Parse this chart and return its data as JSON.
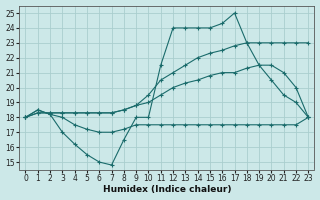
{
  "xlabel": "Humidex (Indice chaleur)",
  "ylabel": "",
  "bg_color": "#cce8e8",
  "grid_color": "#aacece",
  "line_color": "#1a6b6b",
  "xlim": [
    -0.5,
    23.5
  ],
  "ylim": [
    14.5,
    25.5
  ],
  "xticks": [
    0,
    1,
    2,
    3,
    4,
    5,
    6,
    7,
    8,
    9,
    10,
    11,
    12,
    13,
    14,
    15,
    16,
    17,
    18,
    19,
    20,
    21,
    22,
    23
  ],
  "yticks": [
    15,
    16,
    17,
    18,
    19,
    20,
    21,
    22,
    23,
    24,
    25
  ],
  "lines": [
    {
      "x": [
        0,
        1,
        2,
        3,
        4,
        5,
        6,
        7,
        8,
        9,
        10,
        11,
        12,
        13,
        14,
        15,
        16,
        17,
        18,
        19,
        20,
        21,
        22,
        23
      ],
      "y": [
        18,
        18.5,
        18.2,
        17,
        16.2,
        15.5,
        15.0,
        14.8,
        16.5,
        18.0,
        18.0,
        21.5,
        24.0,
        24.0,
        24.0,
        24.0,
        24.3,
        25.0,
        23.0,
        21.5,
        20.5,
        19.5,
        19.0,
        18.0
      ]
    },
    {
      "x": [
        0,
        1,
        2,
        3,
        4,
        5,
        6,
        7,
        8,
        9,
        10,
        11,
        12,
        13,
        14,
        15,
        16,
        17,
        18,
        19,
        20,
        21,
        22,
        23
      ],
      "y": [
        18,
        18.3,
        18.3,
        18.3,
        18.3,
        18.3,
        18.3,
        18.3,
        18.5,
        18.8,
        19.5,
        20.5,
        21.0,
        21.5,
        22.0,
        22.3,
        22.5,
        22.8,
        23.0,
        23.0,
        23.0,
        23.0,
        23.0,
        23.0
      ]
    },
    {
      "x": [
        0,
        1,
        2,
        3,
        4,
        5,
        6,
        7,
        8,
        9,
        10,
        11,
        12,
        13,
        14,
        15,
        16,
        17,
        18,
        19,
        20,
        21,
        22,
        23
      ],
      "y": [
        18,
        18.3,
        18.3,
        18.3,
        18.3,
        18.3,
        18.3,
        18.3,
        18.5,
        18.8,
        19.0,
        19.5,
        20.0,
        20.3,
        20.5,
        20.8,
        21.0,
        21.0,
        21.3,
        21.5,
        21.5,
        21.0,
        20.0,
        18.0
      ]
    },
    {
      "x": [
        0,
        1,
        2,
        3,
        4,
        5,
        6,
        7,
        8,
        9,
        10,
        11,
        12,
        13,
        14,
        15,
        16,
        17,
        18,
        19,
        20,
        21,
        22,
        23
      ],
      "y": [
        18,
        18.5,
        18.2,
        18.0,
        17.5,
        17.2,
        17.0,
        17.0,
        17.2,
        17.5,
        17.5,
        17.5,
        17.5,
        17.5,
        17.5,
        17.5,
        17.5,
        17.5,
        17.5,
        17.5,
        17.5,
        17.5,
        17.5,
        18.0
      ]
    }
  ]
}
